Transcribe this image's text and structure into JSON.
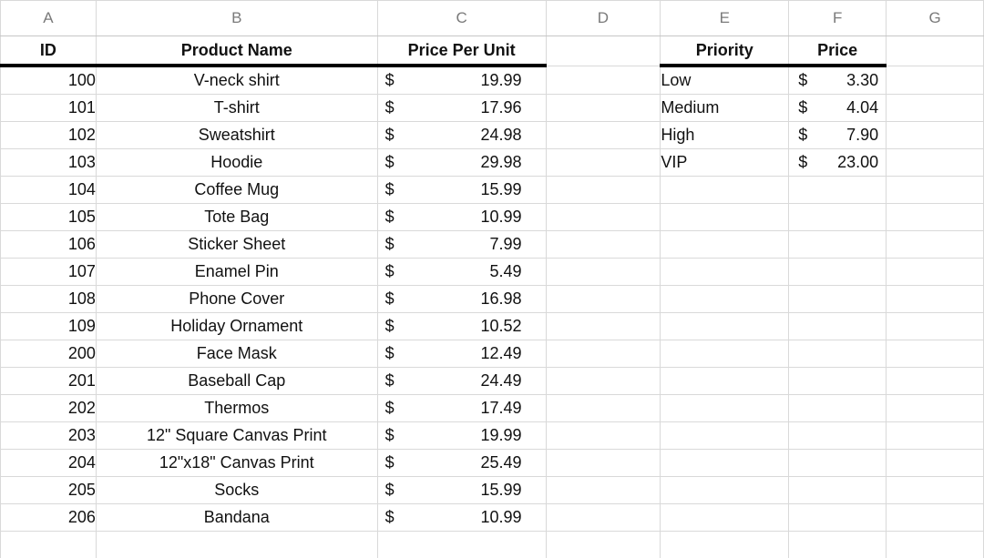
{
  "columns": [
    "A",
    "B",
    "C",
    "D",
    "E",
    "F",
    "G"
  ],
  "headers": {
    "id": "ID",
    "product": "Product Name",
    "price_per_unit": "Price Per Unit",
    "priority": "Priority",
    "price": "Price"
  },
  "currency_symbol": "$",
  "products": [
    {
      "id": "100",
      "name": "V-neck shirt",
      "price": "19.99"
    },
    {
      "id": "101",
      "name": "T-shirt",
      "price": "17.96"
    },
    {
      "id": "102",
      "name": "Sweatshirt",
      "price": "24.98"
    },
    {
      "id": "103",
      "name": "Hoodie",
      "price": "29.98"
    },
    {
      "id": "104",
      "name": "Coffee Mug",
      "price": "15.99"
    },
    {
      "id": "105",
      "name": "Tote Bag",
      "price": "10.99"
    },
    {
      "id": "106",
      "name": "Sticker Sheet",
      "price": "7.99"
    },
    {
      "id": "107",
      "name": "Enamel Pin",
      "price": "5.49"
    },
    {
      "id": "108",
      "name": "Phone Cover",
      "price": "16.98"
    },
    {
      "id": "109",
      "name": "Holiday Ornament",
      "price": "10.52"
    },
    {
      "id": "200",
      "name": "Face Mask",
      "price": "12.49"
    },
    {
      "id": "201",
      "name": "Baseball Cap",
      "price": "24.49"
    },
    {
      "id": "202",
      "name": "Thermos",
      "price": "17.49"
    },
    {
      "id": "203",
      "name": "12\" Square Canvas Print",
      "price": "19.99"
    },
    {
      "id": "204",
      "name": "12\"x18\" Canvas Print",
      "price": "25.49"
    },
    {
      "id": "205",
      "name": "Socks",
      "price": "15.99"
    },
    {
      "id": "206",
      "name": "Bandana",
      "price": "10.99"
    }
  ],
  "priorities": [
    {
      "level": "Low",
      "price": "3.30"
    },
    {
      "level": "Medium",
      "price": "4.04"
    },
    {
      "level": "High",
      "price": "7.90"
    },
    {
      "level": "VIP",
      "price": "23.00"
    }
  ]
}
